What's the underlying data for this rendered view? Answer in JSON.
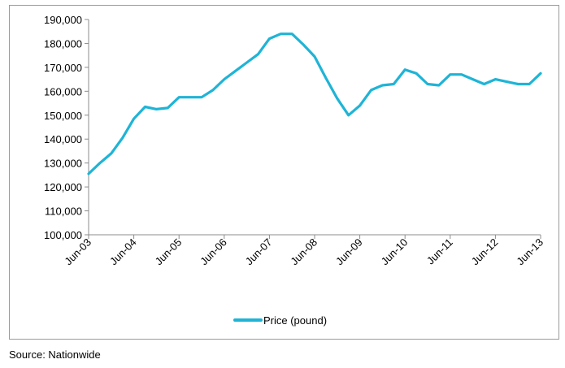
{
  "chart_data": {
    "type": "line",
    "title": "",
    "xlabel": "",
    "ylabel": "",
    "ylim": [
      100000,
      190000
    ],
    "y_ticks": [
      100000,
      110000,
      120000,
      130000,
      140000,
      150000,
      160000,
      170000,
      180000,
      190000
    ],
    "y_tick_labels": [
      "100,000",
      "110,000",
      "120,000",
      "130,000",
      "140,000",
      "150,000",
      "160,000",
      "170,000",
      "180,000",
      "190,000"
    ],
    "x_tick_labels": [
      "Jun-03",
      "Jun-04",
      "Jun-05",
      "Jun-06",
      "Jun-07",
      "Jun-08",
      "Jun-09",
      "Jun-10",
      "Jun-11",
      "Jun-12",
      "Jun-13"
    ],
    "x_tick_quarters": [
      0,
      4,
      8,
      12,
      16,
      20,
      24,
      28,
      32,
      36,
      40
    ],
    "grid": false,
    "legend_position": "bottom",
    "series": [
      {
        "name": "Price (pound)",
        "color": "#1fb4d6",
        "values": [
          125500,
          130000,
          134000,
          140500,
          148500,
          153500,
          152500,
          153000,
          157500,
          157500,
          157500,
          160500,
          165000,
          168500,
          172000,
          175500,
          182000,
          184000,
          184000,
          179500,
          174500,
          165500,
          157000,
          150000,
          154000,
          160500,
          162500,
          163000,
          169000,
          167500,
          163000,
          162500,
          167000,
          167000,
          165000,
          163000,
          165000,
          164000,
          163000,
          163000,
          167500
        ]
      }
    ]
  },
  "source_note": "Source: Nationwide"
}
